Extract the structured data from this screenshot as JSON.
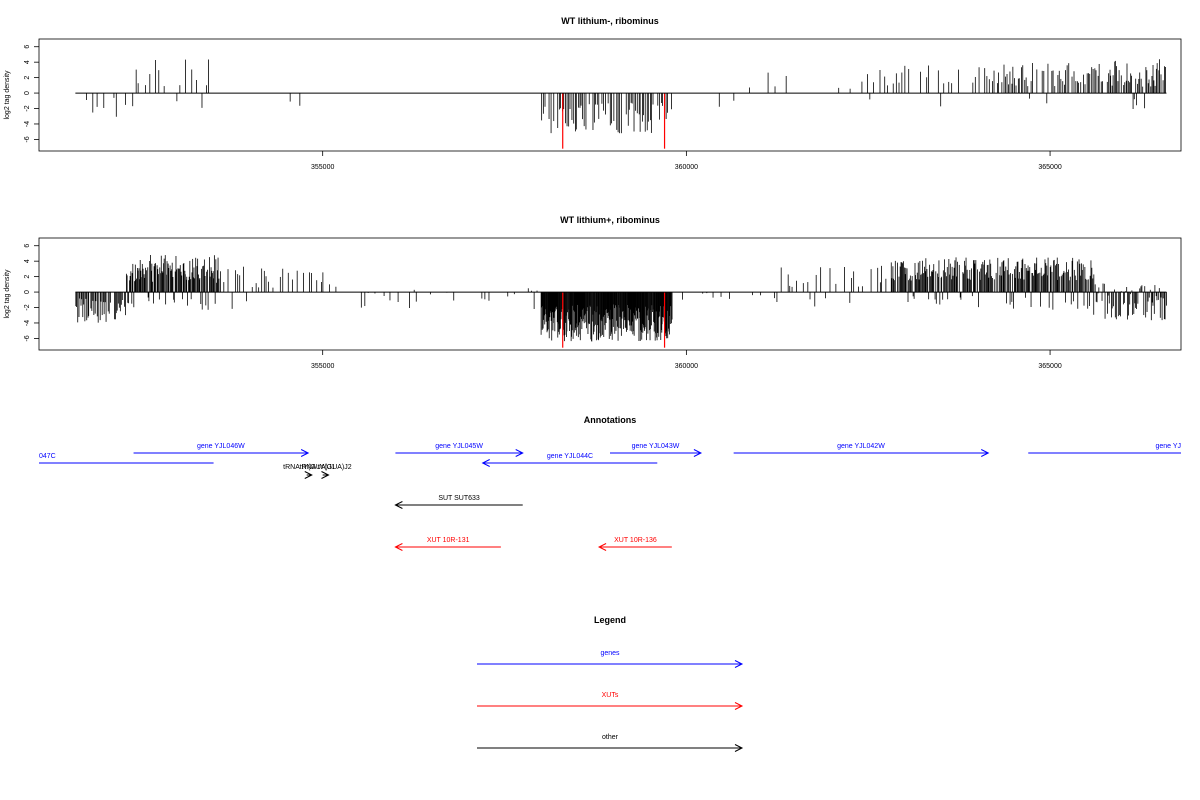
{
  "colors": {
    "gene": "#0000ff",
    "xut": "#ff0000",
    "other": "#000000",
    "highlight": "#ff0000",
    "bars": "#000000",
    "axis": "#000000"
  },
  "chart_data": [
    {
      "type": "bar",
      "title": "WT lithium-, ribominus",
      "ylabel": "log2 tag density",
      "xlim": [
        351100,
        366800
      ],
      "ylim": [
        -7.5,
        7
      ],
      "xticks": [
        355000,
        360000,
        365000
      ],
      "yticks": [
        6,
        4,
        2,
        0,
        -2,
        -4,
        -6
      ],
      "baseline": [
        351600,
        366600
      ],
      "highlight_positions": [
        358300,
        359700
      ],
      "highlight_value": -7.2,
      "series": [
        {
          "segments": [
            {
              "from": 351700,
              "to": 352300,
              "step": 45,
              "mean": -1.7,
              "amp": 1.6,
              "density": 0.55
            },
            {
              "from": 352300,
              "to": 353450,
              "step": 40,
              "mean": 2.6,
              "amp": 1.8,
              "density": 0.6
            },
            {
              "from": 353450,
              "to": 354800,
              "step": 60,
              "mean": 2.0,
              "amp": 1.6,
              "density": 0.18
            },
            {
              "from": 354800,
              "to": 357200,
              "step": 200,
              "mean": 1.2,
              "amp": 0.6,
              "density": 0.12
            },
            {
              "from": 357200,
              "to": 358000,
              "step": 100,
              "mean": 1.8,
              "amp": 0.6,
              "density": 0.35
            },
            {
              "from": 358000,
              "to": 359800,
              "step": 22,
              "mean": -3.2,
              "amp": 2.0,
              "density": 0.9
            },
            {
              "from": 359800,
              "to": 360700,
              "step": 120,
              "mean": -2.0,
              "amp": 1.2,
              "density": 0.25
            },
            {
              "from": 360700,
              "to": 362400,
              "step": 80,
              "mean": 1.5,
              "amp": 1.2,
              "density": 0.35
            },
            {
              "from": 362400,
              "to": 364200,
              "step": 40,
              "mean": 2.2,
              "amp": 1.4,
              "density": 0.5
            },
            {
              "from": 364200,
              "to": 365800,
              "step": 22,
              "mean": 2.4,
              "amp": 1.5,
              "density": 0.85
            },
            {
              "from": 365800,
              "to": 366600,
              "step": 16,
              "mean": 2.6,
              "amp": 1.8,
              "density": 0.95
            }
          ],
          "neg_in_pos_frac": 0.1
        }
      ]
    },
    {
      "type": "bar",
      "title": "WT lithium+, ribominus",
      "ylabel": "log2 tag density",
      "xlim": [
        351100,
        366800
      ],
      "ylim": [
        -7.5,
        7
      ],
      "xticks": [
        355000,
        360000,
        365000
      ],
      "yticks": [
        6,
        4,
        2,
        0,
        -2,
        -4,
        -6
      ],
      "baseline": [
        351600,
        366600
      ],
      "highlight_positions": [
        358300,
        359700
      ],
      "highlight_value": -7.2,
      "series": [
        {
          "segments": [
            {
              "from": 351600,
              "to": 352300,
              "step": 14,
              "mean": -2.4,
              "amp": 1.6,
              "density": 0.9
            },
            {
              "from": 352300,
              "to": 353600,
              "step": 10,
              "mean": 3.0,
              "amp": 1.8,
              "density": 0.95
            },
            {
              "from": 353600,
              "to": 355200,
              "step": 28,
              "mean": 1.8,
              "amp": 1.5,
              "density": 0.55
            },
            {
              "from": 355200,
              "to": 358000,
              "step": 45,
              "mean": -0.8,
              "amp": 1.4,
              "density": 0.45
            },
            {
              "from": 358000,
              "to": 359800,
              "step": 7,
              "mean": -4.0,
              "amp": 2.4,
              "density": 1.0
            },
            {
              "from": 359800,
              "to": 361300,
              "step": 60,
              "mean": -1.2,
              "amp": 1.2,
              "density": 0.35
            },
            {
              "from": 361300,
              "to": 362800,
              "step": 30,
              "mean": 2.0,
              "amp": 1.4,
              "density": 0.6
            },
            {
              "from": 362800,
              "to": 365600,
              "step": 12,
              "mean": 3.0,
              "amp": 1.5,
              "density": 0.95
            },
            {
              "from": 365600,
              "to": 366600,
              "step": 14,
              "mean": -1.2,
              "amp": 2.6,
              "density": 0.9
            }
          ],
          "neg_in_pos_frac": 0.15
        }
      ]
    }
  ],
  "annotations": {
    "title": "Annotations",
    "features": [
      {
        "label": "047C",
        "kind": "gene",
        "strand": "-",
        "start": 351100,
        "end": 353500,
        "row": 1,
        "clip_left": true
      },
      {
        "label": "gene YJL046W",
        "kind": "gene",
        "strand": "+",
        "start": 352400,
        "end": 354800,
        "row": 0
      },
      {
        "label": "tRNA tY(GUA)J1",
        "kind": "other",
        "strand": "+",
        "start": 354780,
        "end": 354850,
        "row": 2
      },
      {
        "label": "tRNA tY(GUA)J2",
        "kind": "other",
        "strand": "+",
        "start": 355000,
        "end": 355080,
        "row": 2
      },
      {
        "label": "gene YJL045W",
        "kind": "gene",
        "strand": "+",
        "start": 356000,
        "end": 357750,
        "row": 0
      },
      {
        "label": "gene YJL044C",
        "kind": "gene",
        "strand": "-",
        "start": 357200,
        "end": 359600,
        "row": 1
      },
      {
        "label": "gene YJL043W",
        "kind": "gene",
        "strand": "+",
        "start": 358950,
        "end": 360200,
        "row": 0
      },
      {
        "label": "gene YJL042W",
        "kind": "gene",
        "strand": "+",
        "start": 360650,
        "end": 364150,
        "row": 0
      },
      {
        "label": "gene YJ",
        "kind": "gene",
        "strand": "+",
        "start": 364700,
        "end": 367500,
        "row": 0,
        "clip_right": true
      },
      {
        "label": "SUT SUT633",
        "kind": "other",
        "strand": "-",
        "start": 356000,
        "end": 357750,
        "row": 3
      },
      {
        "label": "XUT 10R-131",
        "kind": "xut",
        "strand": "-",
        "start": 356000,
        "end": 357450,
        "row": 4
      },
      {
        "label": "XUT 10R-136",
        "kind": "xut",
        "strand": "-",
        "start": 358800,
        "end": 359800,
        "row": 4
      }
    ]
  },
  "legend": {
    "title": "Legend",
    "items": [
      {
        "label": "genes",
        "kind": "gene"
      },
      {
        "label": "XUTs",
        "kind": "xut"
      },
      {
        "label": "other",
        "kind": "other"
      }
    ]
  }
}
